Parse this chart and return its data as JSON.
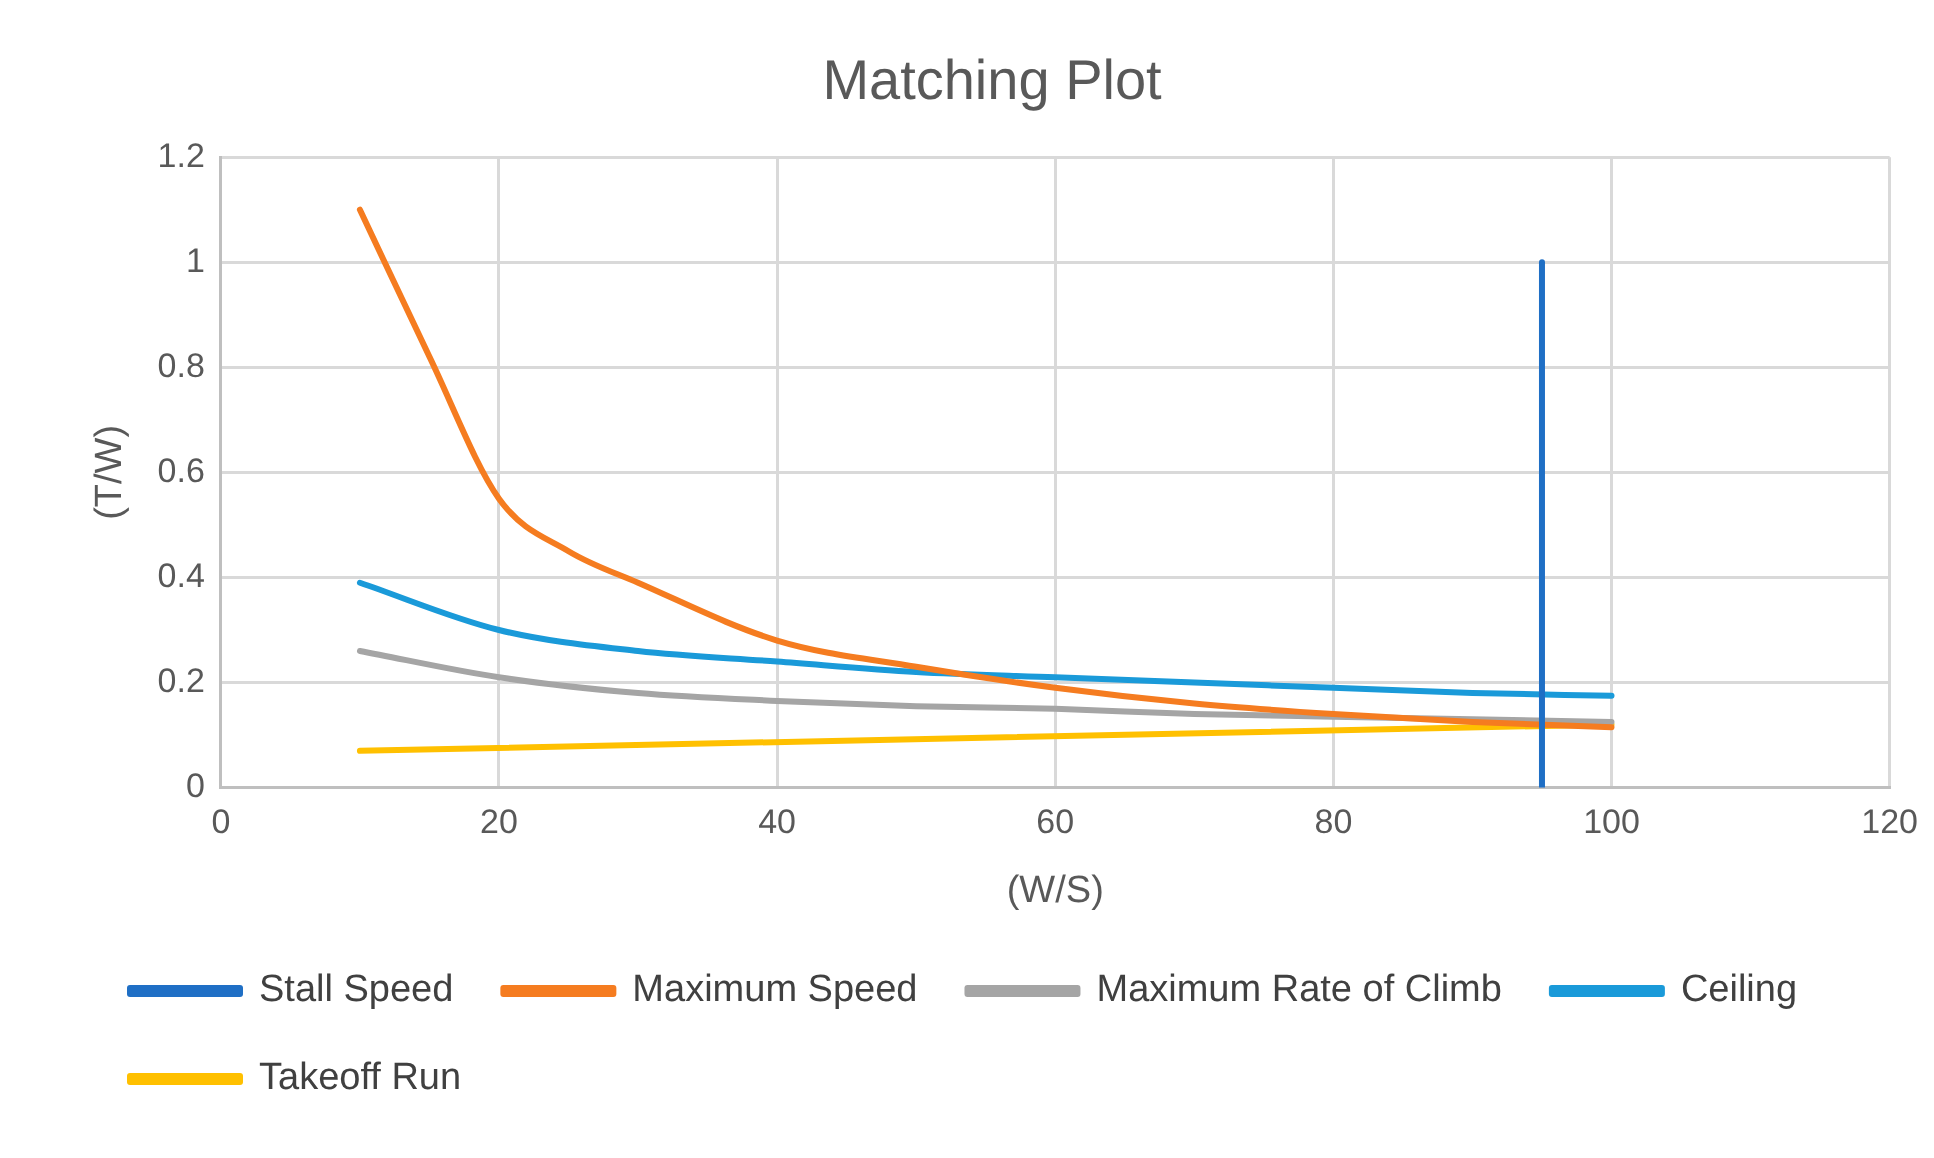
{
  "chart_data": {
    "type": "line",
    "title": "Matching Plot",
    "xlabel": "(W/S)",
    "ylabel": "(T/W)",
    "xlim": [
      0,
      120
    ],
    "xticks": [
      0,
      20,
      40,
      60,
      80,
      100,
      120
    ],
    "ylim": [
      0,
      1.2
    ],
    "yticks": [
      0,
      0.2,
      0.4,
      0.6,
      0.8,
      1,
      1.2
    ],
    "grid": true,
    "legend": "bottom",
    "marker": "none",
    "line_style": "solid",
    "series": [
      {
        "name": "Stall Speed",
        "color": "#1f6fc5",
        "x": [
          95,
          95
        ],
        "values": [
          0,
          1
        ]
      },
      {
        "name": "Maximum Speed",
        "color": "#f57c20",
        "x": [
          10,
          15,
          20,
          25,
          30,
          40,
          50,
          60,
          70,
          80,
          90,
          100
        ],
        "values": [
          1.1,
          0.82,
          0.55,
          0.45,
          0.39,
          0.28,
          0.23,
          0.19,
          0.16,
          0.14,
          0.125,
          0.115
        ]
      },
      {
        "name": "Maximum Rate of Climb",
        "color": "#a5a5a5",
        "x": [
          10,
          20,
          30,
          40,
          50,
          60,
          70,
          80,
          90,
          100
        ],
        "values": [
          0.26,
          0.21,
          0.18,
          0.165,
          0.155,
          0.15,
          0.14,
          0.135,
          0.13,
          0.125
        ]
      },
      {
        "name": "Ceiling",
        "color": "#1a9ad9",
        "x": [
          10,
          20,
          30,
          40,
          50,
          60,
          70,
          80,
          90,
          100
        ],
        "values": [
          0.39,
          0.3,
          0.26,
          0.24,
          0.22,
          0.21,
          0.2,
          0.19,
          0.18,
          0.175
        ]
      },
      {
        "name": "Takeoff Run",
        "color": "#ffc000",
        "x": [
          10,
          100
        ],
        "values": [
          0.07,
          0.12
        ]
      }
    ]
  }
}
